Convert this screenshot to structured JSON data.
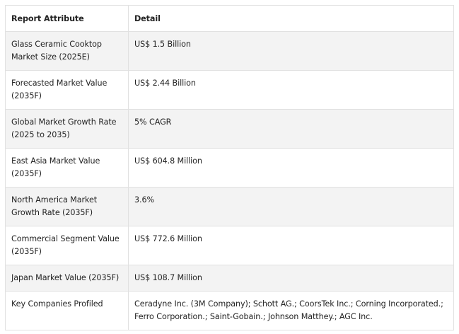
{
  "header": {
    "col1": "Report Attribute",
    "col2": "Detail"
  },
  "rows": [
    {
      "attr_line1": "Glass Ceramic Cooktop",
      "attr_line2": "Market Size (2025E)",
      "detail": "US$ 1.5 Billion",
      "detail_line2": ""
    },
    {
      "attr_line1": "Forecasted Market Value",
      "attr_line2": "(2035F)",
      "detail": "US$ 2.44 Billion",
      "detail_line2": ""
    },
    {
      "attr_line1": "Global Market Growth Rate",
      "attr_line2": "(2025 to 2035)",
      "detail": "5% CAGR",
      "detail_line2": ""
    },
    {
      "attr_line1": "East Asia Market Value",
      "attr_line2": "(2035F)",
      "detail": "US$ 604.8 Million",
      "detail_line2": ""
    },
    {
      "attr_line1": "North America Market",
      "attr_line2": "Growth Rate (2035F)",
      "detail": "3.6%",
      "detail_line2": ""
    },
    {
      "attr_line1": "Commercial Segment Value",
      "attr_line2": "(2035F)",
      "detail": "US$ 772.6 Million",
      "detail_line2": ""
    },
    {
      "attr_line1": "Japan Market Value (2035F)",
      "attr_line2": "",
      "detail": "US$ 108.7 Million",
      "detail_line2": ""
    },
    {
      "attr_line1": "Key Companies Profiled",
      "attr_line2": "",
      "detail": "Ceradyne Inc. (3M Company); Schott AG.; CoorsTek Inc.; Corning Incorporated.;",
      "detail_line2": "Ferro Corporation.; Saint-Gobain.; Johnson Matthey.; AGC Inc."
    }
  ]
}
